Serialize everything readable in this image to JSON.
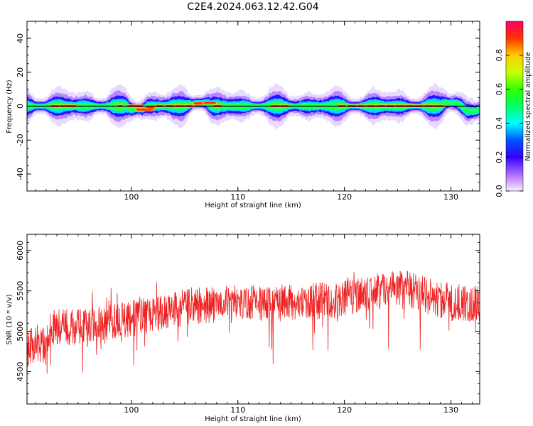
{
  "figure_title": "C2E4.2024.063.12.42.G04",
  "colors": {
    "snr_line": "#ee2222",
    "axes": "#000000",
    "background": "#ffffff"
  },
  "chart_data": [
    {
      "type": "heatmap",
      "title": "",
      "xlabel": "Height of straight line (km)",
      "ylabel": "Frequency (Hz)",
      "xlim": [
        90.2,
        132.7
      ],
      "ylim": [
        -50,
        50
      ],
      "x_ticks": [
        100,
        110,
        120,
        130
      ],
      "x_tick_labels": [
        "100",
        "110",
        "120",
        "130"
      ],
      "y_ticks": [
        -40,
        -20,
        0,
        20,
        40
      ],
      "y_tick_labels": [
        "-40",
        "-20",
        "0",
        "20",
        "40"
      ],
      "signal_line_frequency": 0,
      "frequency_track": [
        [
          90.2,
          0
        ],
        [
          93,
          0
        ],
        [
          99.5,
          0
        ],
        [
          100,
          -2
        ],
        [
          101,
          -2
        ],
        [
          101.5,
          0
        ],
        [
          105,
          0
        ],
        [
          106,
          2
        ],
        [
          107,
          2
        ],
        [
          107.5,
          0
        ],
        [
          129,
          0
        ],
        [
          129.5,
          2
        ],
        [
          130.5,
          2
        ],
        [
          131,
          0
        ],
        [
          131.5,
          -3
        ],
        [
          132.3,
          -3
        ],
        [
          132.7,
          -2
        ]
      ],
      "colorbar": {
        "label": "Normalized spectral amplitude",
        "range": [
          0,
          1
        ],
        "ticks": [
          0.0,
          0.2,
          0.4,
          0.6,
          0.8
        ],
        "tick_labels": [
          "0.0",
          "0.2",
          "0.4",
          "0.6",
          "0.8"
        ],
        "colormap": "gist_rainbow_r"
      },
      "grid": false
    },
    {
      "type": "line",
      "title": "",
      "xlabel": "Height of straight line (km)",
      "ylabel": "SNR (10 * v/v)",
      "xlim": [
        90.2,
        132.7
      ],
      "ylim": [
        4100,
        6200
      ],
      "x_ticks": [
        100,
        110,
        120,
        130
      ],
      "x_tick_labels": [
        "100",
        "110",
        "120",
        "130"
      ],
      "y_ticks": [
        4500,
        5000,
        5500,
        6000
      ],
      "y_tick_labels": [
        "4500",
        "5000",
        "5500",
        "6000"
      ],
      "series": [
        {
          "x_start": 90.2,
          "x_end": 132.7,
          "trend": [
            [
              90.2,
              4800
            ],
            [
              92,
              4850
            ],
            [
              92.5,
              5050
            ],
            [
              95,
              5050
            ],
            [
              100,
              5150
            ],
            [
              105,
              5300
            ],
            [
              110,
              5350
            ],
            [
              115,
              5350
            ],
            [
              120,
              5400
            ],
            [
              125,
              5550
            ],
            [
              130,
              5350
            ],
            [
              132.7,
              5350
            ]
          ],
          "noise_amplitude": 230
        }
      ],
      "grid": false
    }
  ]
}
